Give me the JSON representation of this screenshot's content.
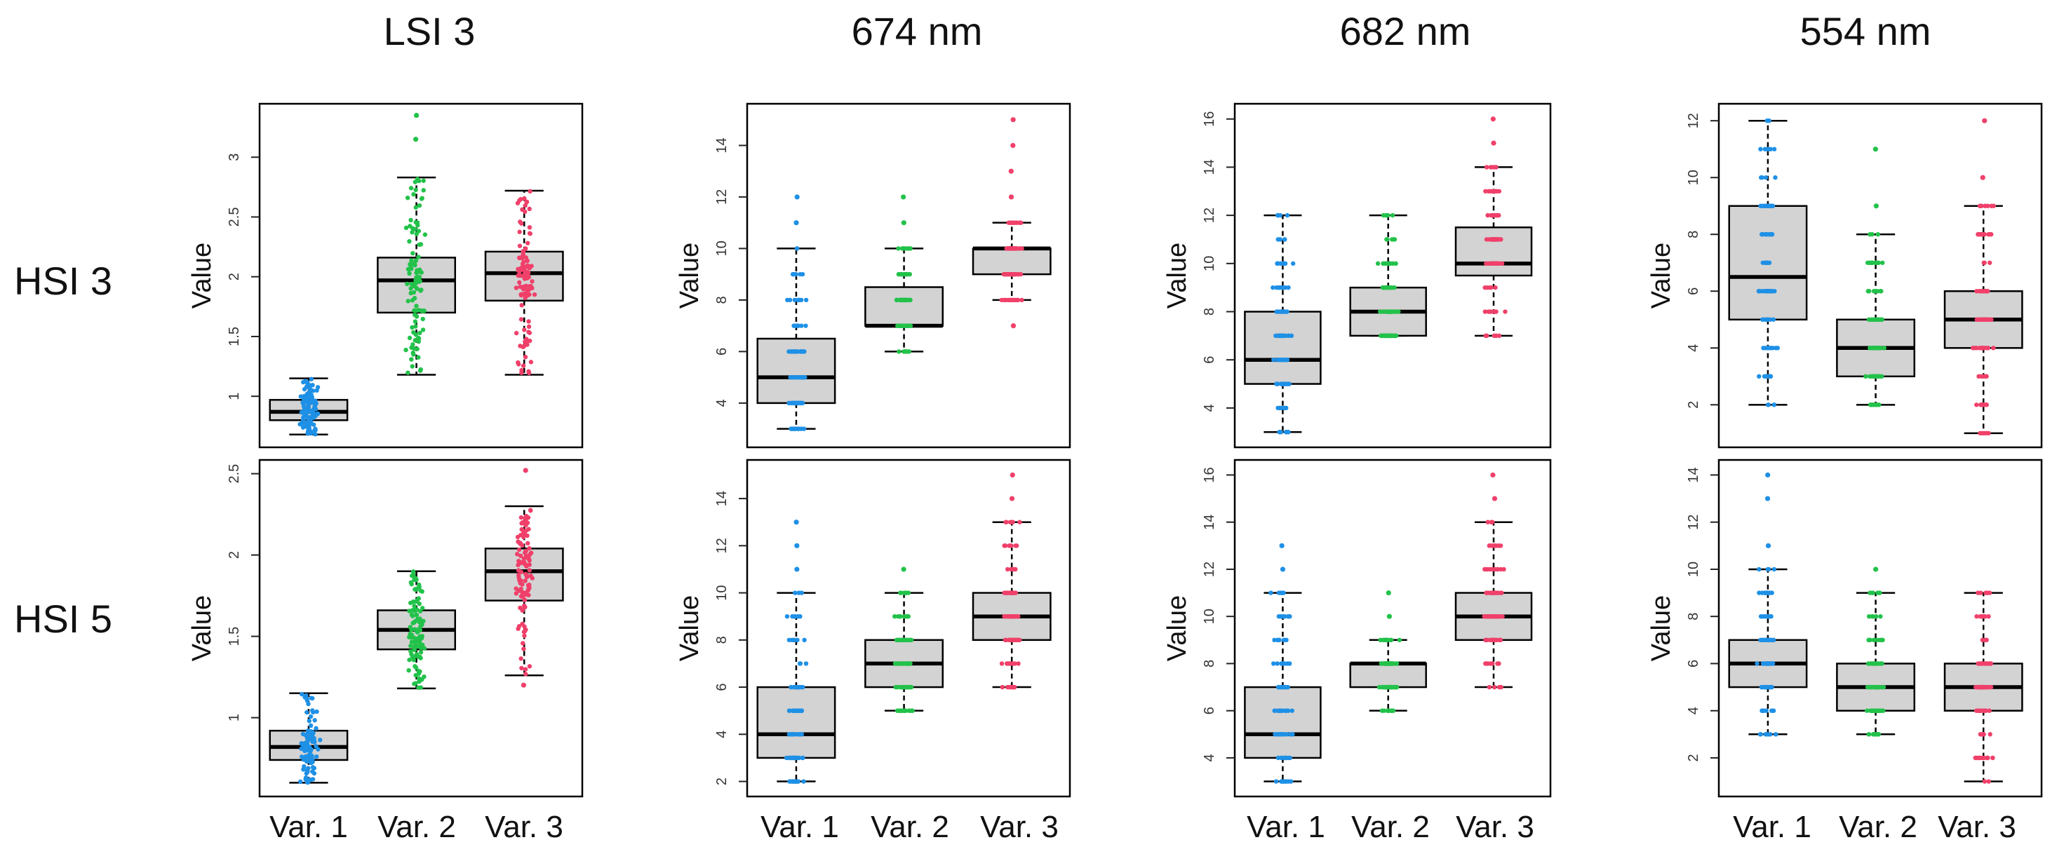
{
  "column_titles": [
    "LSI 3",
    "674 nm",
    "682 nm",
    "554 nm"
  ],
  "row_labels": [
    "HSI 3",
    "HSI 5"
  ],
  "variable_labels": [
    "Var. 1",
    "Var. 2",
    "Var. 3"
  ],
  "colors": {
    "var1": "#1e90e6",
    "var2": "#22c24a",
    "var3": "#f0406a",
    "box_fill": "#d3d3d3",
    "frame": "#000000"
  },
  "chart_data": [
    {
      "type": "box",
      "row": "HSI 3",
      "column": "LSI 3",
      "ylabel": "Value",
      "ylim": [
        0.62,
        3.4
      ],
      "yticks": [
        1.0,
        1.5,
        2.0,
        2.5,
        3.0
      ],
      "series": [
        {
          "name": "Var. 1",
          "min": 0.68,
          "q1": 0.8,
          "median": 0.87,
          "q3": 0.97,
          "max": 1.15,
          "outliers": []
        },
        {
          "name": "Var. 2",
          "min": 1.18,
          "q1": 1.7,
          "median": 1.97,
          "q3": 2.16,
          "max": 2.83,
          "outliers": [
            3.15,
            3.35
          ]
        },
        {
          "name": "Var. 3",
          "min": 1.18,
          "q1": 1.8,
          "median": 2.03,
          "q3": 2.21,
          "max": 2.72,
          "outliers": []
        }
      ]
    },
    {
      "type": "box",
      "row": "HSI 3",
      "column": "674 nm",
      "ylabel": "Value",
      "ylim": [
        2.5,
        15.4
      ],
      "yticks": [
        4,
        6,
        8,
        10,
        12,
        14
      ],
      "series": [
        {
          "name": "Var. 1",
          "min": 3,
          "q1": 4,
          "median": 5,
          "q3": 6.5,
          "max": 10,
          "outliers": [
            11,
            12
          ]
        },
        {
          "name": "Var. 2",
          "min": 6,
          "q1": 7,
          "median": 7,
          "q3": 8.5,
          "max": 10,
          "outliers": [
            11,
            12
          ]
        },
        {
          "name": "Var. 3",
          "min": 8,
          "q1": 9,
          "median": 10,
          "q3": 10,
          "max": 11,
          "outliers": [
            7,
            12,
            13,
            14,
            15
          ]
        }
      ]
    },
    {
      "type": "box",
      "row": "HSI 3",
      "column": "682 nm",
      "ylabel": "Value",
      "ylim": [
        2.6,
        16.4
      ],
      "yticks": [
        4,
        6,
        8,
        10,
        12,
        14,
        16
      ],
      "series": [
        {
          "name": "Var. 1",
          "min": 3,
          "q1": 5,
          "median": 6,
          "q3": 8,
          "max": 12,
          "outliers": []
        },
        {
          "name": "Var. 2",
          "min": 7,
          "q1": 7,
          "median": 8,
          "q3": 9,
          "max": 12,
          "outliers": []
        },
        {
          "name": "Var. 3",
          "min": 7,
          "q1": 9.5,
          "median": 10,
          "q3": 11.5,
          "max": 14,
          "outliers": [
            15,
            16
          ]
        }
      ]
    },
    {
      "type": "box",
      "row": "HSI 3",
      "column": "554 nm",
      "ylabel": "Value",
      "ylim": [
        0.7,
        12.4
      ],
      "yticks": [
        2,
        4,
        6,
        8,
        10,
        12
      ],
      "series": [
        {
          "name": "Var. 1",
          "min": 2,
          "q1": 5,
          "median": 6.5,
          "q3": 9,
          "max": 12,
          "outliers": []
        },
        {
          "name": "Var. 2",
          "min": 2,
          "q1": 3,
          "median": 4,
          "q3": 5,
          "max": 8,
          "outliers": [
            9,
            11
          ]
        },
        {
          "name": "Var. 3",
          "min": 1,
          "q1": 4,
          "median": 5,
          "q3": 6,
          "max": 9,
          "outliers": [
            10,
            12
          ]
        }
      ]
    },
    {
      "type": "box",
      "row": "HSI 5",
      "column": "LSI 3",
      "ylabel": "Value",
      "ylim": [
        0.55,
        2.55
      ],
      "yticks": [
        1.0,
        1.5,
        2.0,
        2.5
      ],
      "series": [
        {
          "name": "Var. 1",
          "min": 0.6,
          "q1": 0.74,
          "median": 0.82,
          "q3": 0.92,
          "max": 1.15,
          "outliers": []
        },
        {
          "name": "Var. 2",
          "min": 1.18,
          "q1": 1.42,
          "median": 1.54,
          "q3": 1.66,
          "max": 1.9,
          "outliers": []
        },
        {
          "name": "Var. 3",
          "min": 1.26,
          "q1": 1.72,
          "median": 1.9,
          "q3": 2.04,
          "max": 2.3,
          "outliers": [
            1.2,
            2.52
          ]
        }
      ]
    },
    {
      "type": "box",
      "row": "HSI 5",
      "column": "674 nm",
      "ylabel": "Value",
      "ylim": [
        1.6,
        15.4
      ],
      "yticks": [
        2,
        4,
        6,
        8,
        10,
        12,
        14
      ],
      "series": [
        {
          "name": "Var. 1",
          "min": 2,
          "q1": 3,
          "median": 4,
          "q3": 6,
          "max": 10,
          "outliers": [
            11,
            12,
            13
          ]
        },
        {
          "name": "Var. 2",
          "min": 5,
          "q1": 6,
          "median": 7,
          "q3": 8,
          "max": 10,
          "outliers": [
            11
          ]
        },
        {
          "name": "Var. 3",
          "min": 6,
          "q1": 8,
          "median": 9,
          "q3": 10,
          "max": 13,
          "outliers": [
            14,
            15
          ]
        }
      ]
    },
    {
      "type": "box",
      "row": "HSI 5",
      "column": "682 nm",
      "ylabel": "Value",
      "ylim": [
        2.6,
        16.4
      ],
      "yticks": [
        4,
        6,
        8,
        10,
        12,
        14,
        16
      ],
      "series": [
        {
          "name": "Var. 1",
          "min": 3,
          "q1": 4,
          "median": 5,
          "q3": 7,
          "max": 11,
          "outliers": [
            12,
            13
          ]
        },
        {
          "name": "Var. 2",
          "min": 6,
          "q1": 7,
          "median": 8,
          "q3": 8,
          "max": 9,
          "outliers": [
            10,
            11
          ]
        },
        {
          "name": "Var. 3",
          "min": 7,
          "q1": 9,
          "median": 10,
          "q3": 11,
          "max": 14,
          "outliers": [
            15,
            16
          ]
        }
      ]
    },
    {
      "type": "box",
      "row": "HSI 5",
      "column": "554 nm",
      "ylabel": "Value",
      "ylim": [
        0.6,
        14.4
      ],
      "yticks": [
        2,
        4,
        6,
        8,
        10,
        12,
        14
      ],
      "series": [
        {
          "name": "Var. 1",
          "min": 3,
          "q1": 5,
          "median": 6,
          "q3": 7,
          "max": 10,
          "outliers": [
            11,
            13,
            14
          ]
        },
        {
          "name": "Var. 2",
          "min": 3,
          "q1": 4,
          "median": 5,
          "q3": 6,
          "max": 9,
          "outliers": [
            10
          ]
        },
        {
          "name": "Var. 3",
          "min": 1,
          "q1": 4,
          "median": 5,
          "q3": 6,
          "max": 9,
          "outliers": []
        }
      ]
    }
  ]
}
